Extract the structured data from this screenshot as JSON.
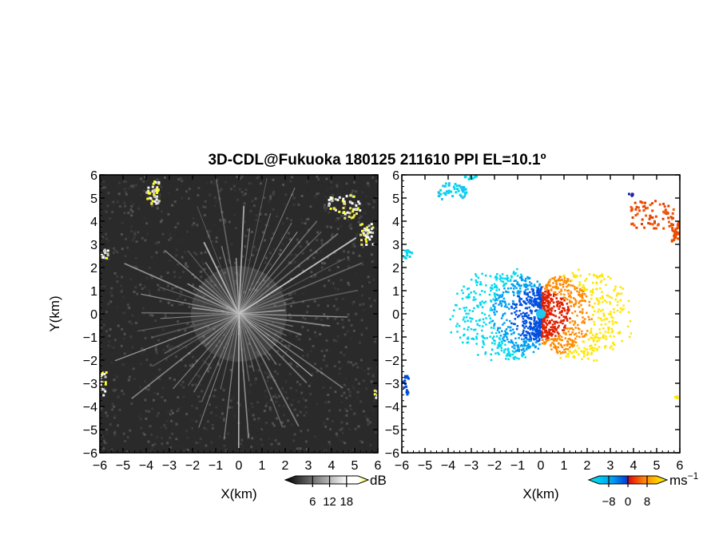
{
  "title": "3D-CDL@Fukuoka 180125 211610 PPI EL=10.1º",
  "colors": {
    "reflectivity_background": "#2a2a2a",
    "reflectivity_streak": "#d8d8d8",
    "reflectivity_hotspot": "#ffff20",
    "velocity_negative_far": "#00d8ee",
    "velocity_negative_near": "#0060e0",
    "velocity_positive_near": "#e02000",
    "velocity_positive_far": "#ffe600",
    "velocity_cloud_ne": "#ee4a00"
  },
  "chart_data": [
    {
      "type": "heatmap",
      "name": "reflectivity",
      "x": {
        "label": "X(km)",
        "range": [
          -6,
          6
        ],
        "ticks": [
          "−6",
          "−5",
          "−4",
          "−3",
          "−2",
          "−1",
          "0",
          "1",
          "2",
          "3",
          "4",
          "5",
          "6"
        ]
      },
      "y": {
        "label": "Y(km)",
        "range": [
          -6,
          6
        ],
        "ticks": [
          "−6",
          "−5",
          "−4",
          "−3",
          "−2",
          "−1",
          "0",
          "1",
          "2",
          "3",
          "4",
          "5",
          "6"
        ]
      },
      "colorbar": {
        "unit": "dB",
        "ticks": [
          "6",
          "12",
          "18"
        ],
        "tick_values": [
          6,
          12,
          18
        ],
        "range": [
          0,
          22
        ]
      }
    },
    {
      "type": "heatmap",
      "name": "doppler-velocity",
      "x": {
        "label": "X(km)",
        "range": [
          -6,
          6
        ],
        "ticks": [
          "−6",
          "−5",
          "−4",
          "−3",
          "−2",
          "−1",
          "0",
          "1",
          "2",
          "3",
          "4",
          "5",
          "6"
        ]
      },
      "y": {
        "label": "",
        "range": [
          -6,
          6
        ],
        "ticks": [
          "−6",
          "−5",
          "−4",
          "−3",
          "−2",
          "−1",
          "0",
          "1",
          "2",
          "3",
          "4",
          "5",
          "6"
        ]
      },
      "colorbar": {
        "unit": "ms",
        "unit_exponent": "−1",
        "ticks": [
          "−8",
          "0",
          "8"
        ],
        "tick_values": [
          -8,
          0,
          8
        ],
        "range": [
          -12,
          12
        ]
      }
    }
  ]
}
